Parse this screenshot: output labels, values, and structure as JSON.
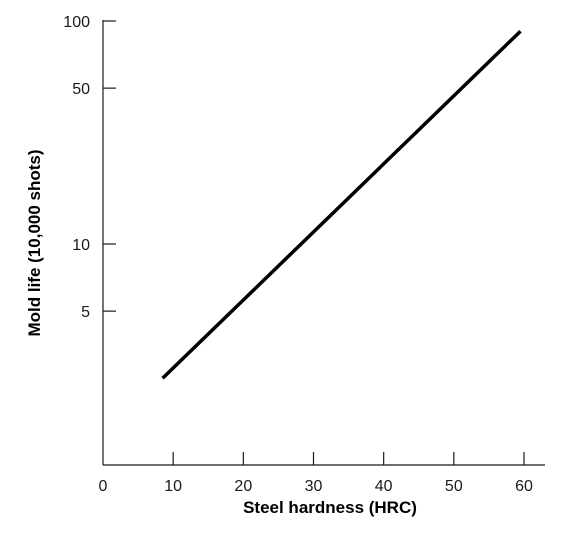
{
  "chart_data": {
    "type": "line",
    "xlabel": "Steel hardness (HRC)",
    "ylabel": "Mold life (10,000 shots)",
    "xlim": [
      0,
      65
    ],
    "ylim": [
      1,
      110
    ],
    "yscale": "log",
    "grid": false,
    "x_ticks": [
      0,
      10,
      20,
      30,
      40,
      50,
      60
    ],
    "x_tick_labels": [
      "0",
      "10",
      "20",
      "30",
      "40",
      "50",
      "60"
    ],
    "y_ticks": [
      5,
      10,
      50,
      100
    ],
    "y_tick_labels": [
      "5",
      "10",
      "50",
      "100"
    ],
    "series": [
      {
        "x": [
          8.5,
          59.5
        ],
        "y": [
          2.5,
          90
        ]
      }
    ],
    "colors": {
      "line": "#000000",
      "axis": "#1a1a1a"
    }
  }
}
